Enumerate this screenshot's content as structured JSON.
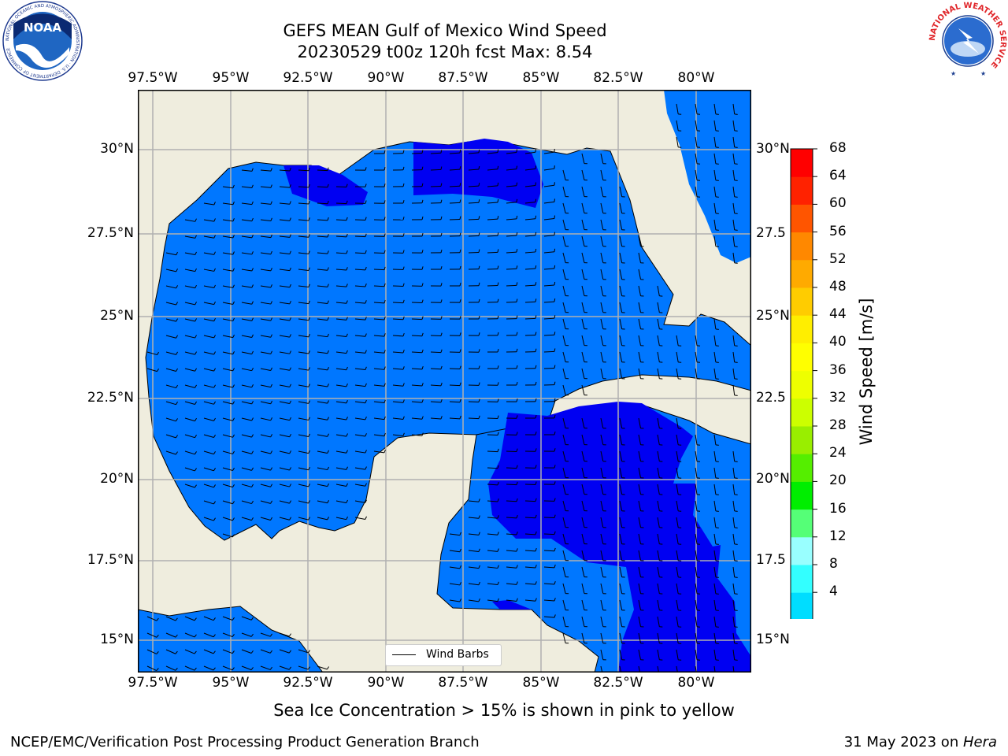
{
  "title": {
    "line1": "GEFS MEAN Gulf of Mexico Wind Speed",
    "line2": "20230529 t00z 120h fcst   Max: 8.54"
  },
  "map": {
    "lon_ticks": [
      "97.5°W",
      "95°W",
      "92.5°W",
      "90°W",
      "87.5°W",
      "85°W",
      "82.5°W",
      "80°W"
    ],
    "lat_ticks": [
      "30°N",
      "27.5°N",
      "25°N",
      "22.5°N",
      "20°N",
      "17.5°N",
      "15°N"
    ],
    "lat_ticks_right": [
      "30°N",
      "27.5",
      "25°N",
      "22.5",
      "20°N",
      "17.5",
      "15°N"
    ],
    "lon_range": [
      -98,
      -78.2
    ],
    "lat_range": [
      14,
      31.8
    ],
    "land_color": "#efedde",
    "ocean_low_color": "#0077ff",
    "ocean_calm_color": "#0000f2",
    "legend_label": "Wind Barbs"
  },
  "colorbar": {
    "label": "Wind Speed [m/s]",
    "ticks": [
      "68",
      "64",
      "60",
      "56",
      "52",
      "48",
      "44",
      "40",
      "36",
      "32",
      "28",
      "24",
      "20",
      "16",
      "12",
      "8",
      "4"
    ],
    "colors": [
      "#0000f2",
      "#0077ff",
      "#00ddff",
      "#33ffff",
      "#99ffff",
      "#55ff77",
      "#00ee00",
      "#55ee00",
      "#99ee00",
      "#ccff00",
      "#eeff00",
      "#ffff00",
      "#ffee00",
      "#ffcc00",
      "#ffaa00",
      "#ff8800",
      "#ff5500",
      "#ff2200",
      "#ff0000"
    ]
  },
  "caption": "Sea Ice Concentration > 15% is shown in pink to yellow",
  "footer": {
    "left": "NCEP/EMC/Verification Post Processing Product Generation Branch",
    "right_prefix": "31 May 2023 on ",
    "right_system": "Hera"
  },
  "logos": {
    "noaa_text": "NOAA",
    "noaa_ring": "NATIONAL OCEANIC AND ATMOSPHERIC ADMINISTRATION · U.S. DEPARTMENT OF COMMERCE",
    "nws_ring": "NATIONAL WEATHER SERVICE"
  }
}
